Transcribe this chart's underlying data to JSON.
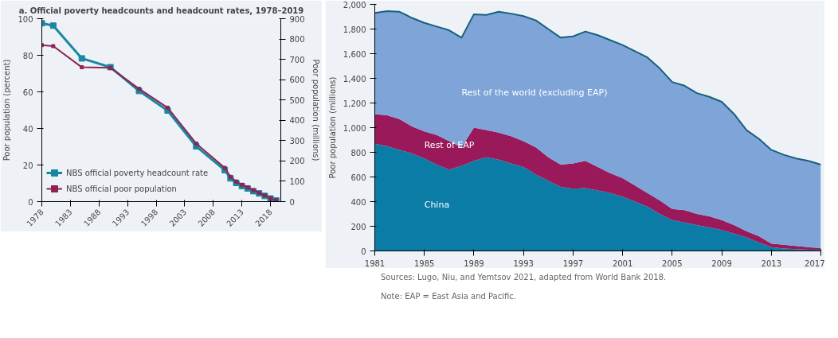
{
  "chart_data": [
    {
      "type": "line",
      "title": "a. Official poverty headcounts and headcount rates, 1978–2019",
      "ylabel": "Poor population (percent)",
      "y2label": "Poor population (millions)",
      "x": [
        1978,
        1980,
        1985,
        1990,
        1995,
        2000,
        2005,
        2010,
        2011,
        2012,
        2013,
        2014,
        2015,
        2016,
        2017,
        2018,
        2019
      ],
      "xlim": [
        1978,
        2019.8
      ],
      "xticks": [
        1978,
        1983,
        1988,
        1993,
        1998,
        2003,
        2008,
        2013,
        2018
      ],
      "ylim": [
        0,
        100
      ],
      "yticks": [
        0,
        20,
        40,
        60,
        80,
        100
      ],
      "y2lim": [
        0,
        900
      ],
      "y2ticks": [
        0,
        100,
        200,
        300,
        400,
        500,
        600,
        700,
        800,
        900
      ],
      "marker": "square",
      "grid": false,
      "legend": "bottom left",
      "series": [
        {
          "name": "NBS official poverty headcount rate",
          "color": "#1a87a0",
          "values": [
            97.5,
            96.2,
            78.3,
            73.5,
            60.5,
            49.8,
            30.2,
            17.2,
            12.7,
            10.2,
            8.5,
            7.2,
            5.7,
            4.5,
            3.1,
            1.7,
            0.6
          ]
        },
        {
          "name": "NBS official poor population",
          "color": "#8e2354",
          "axis": "y2",
          "values": [
            770,
            765,
            661,
            658,
            555,
            462,
            286,
            166,
            122,
            99,
            83,
            70,
            56,
            43,
            30,
            17,
            6
          ]
        }
      ]
    },
    {
      "type": "area",
      "stacked": true,
      "ylabel": "Poor population (millions)",
      "x": [
        1981,
        1982,
        1983,
        1984,
        1985,
        1986,
        1987,
        1988,
        1989,
        1990,
        1991,
        1992,
        1993,
        1994,
        1995,
        1996,
        1997,
        1998,
        1999,
        2000,
        2001,
        2002,
        2003,
        2004,
        2005,
        2006,
        2007,
        2008,
        2009,
        2010,
        2011,
        2012,
        2013,
        2014,
        2015,
        2016,
        2017
      ],
      "xlim": [
        1981,
        2017
      ],
      "xticks": [
        1981,
        1985,
        1989,
        1993,
        1997,
        2001,
        2005,
        2009,
        2013,
        2017
      ],
      "ylim": [
        0,
        2000
      ],
      "yticks": [
        {
          "value": 0,
          "label": "0"
        },
        {
          "value": 200,
          "label": "200"
        },
        {
          "value": 400,
          "label": "400"
        },
        {
          "value": 600,
          "label": "600"
        },
        {
          "value": 800,
          "label": "800"
        },
        {
          "value": 1000,
          "label": "1,000"
        },
        {
          "value": 1200,
          "label": "1,200"
        },
        {
          "value": 1400,
          "label": "1,400"
        },
        {
          "value": 1600,
          "label": "1,600"
        },
        {
          "value": 1800,
          "label": "1,800"
        },
        {
          "value": 2000,
          "label": "2,000"
        }
      ],
      "grid": false,
      "series": [
        {
          "name": "China",
          "color": "#0b7ca6",
          "values": [
            870,
            850,
            820,
            790,
            750,
            700,
            660,
            690,
            730,
            760,
            740,
            710,
            680,
            620,
            570,
            520,
            505,
            510,
            490,
            470,
            440,
            400,
            360,
            300,
            250,
            230,
            210,
            190,
            170,
            140,
            110,
            70,
            30,
            20,
            15,
            10,
            8
          ]
        },
        {
          "name": "Rest of EAP",
          "color": "#99195a",
          "values": [
            240,
            250,
            250,
            220,
            220,
            240,
            230,
            150,
            270,
            220,
            220,
            220,
            210,
            220,
            190,
            180,
            205,
            220,
            190,
            160,
            150,
            130,
            110,
            110,
            90,
            100,
            90,
            90,
            80,
            70,
            50,
            50,
            30,
            30,
            25,
            20,
            17
          ]
        },
        {
          "name": "Rest of the  world (excluding EAP)",
          "color": "#7ea4d8",
          "values": [
            820,
            845,
            870,
            880,
            880,
            880,
            900,
            890,
            920,
            935,
            980,
            995,
            1015,
            1030,
            1040,
            1030,
            1030,
            1050,
            1070,
            1080,
            1080,
            1090,
            1100,
            1070,
            1030,
            1010,
            980,
            970,
            960,
            900,
            820,
            790,
            760,
            730,
            710,
            700,
            675
          ]
        }
      ],
      "annotations": [
        "Sources: Lugo, Niu, and Yemtsov 2021, adapted from World Bank 2018.",
        "Note: EAP = East Asia and Pacific."
      ]
    }
  ]
}
